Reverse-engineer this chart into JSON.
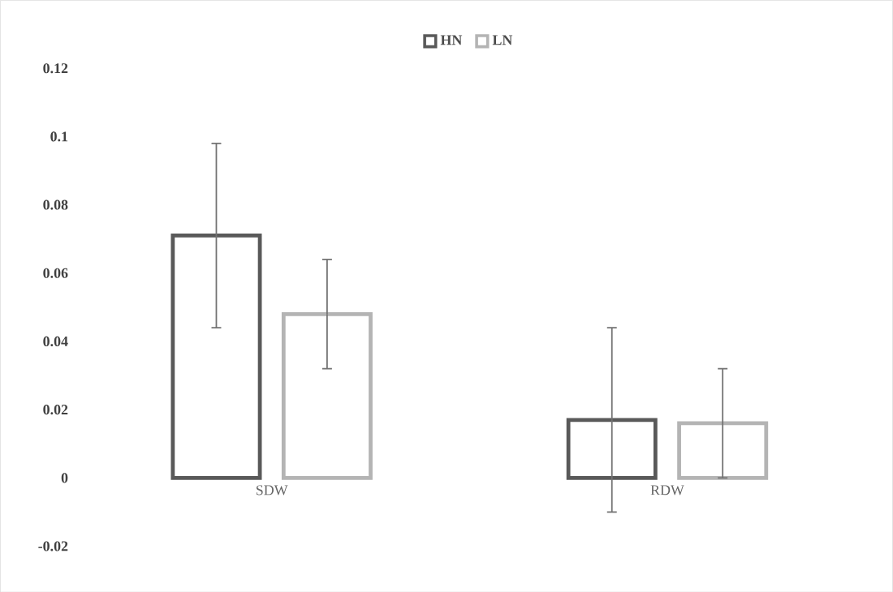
{
  "chart_data": {
    "type": "bar",
    "categories": [
      "SDW",
      "RDW"
    ],
    "series": [
      {
        "name": "HN",
        "color": "#595959",
        "values": [
          0.071,
          0.017
        ],
        "errors": [
          0.027,
          0.027
        ]
      },
      {
        "name": "LN",
        "color": "#b4b4b4",
        "values": [
          0.048,
          0.016
        ],
        "errors": [
          0.016,
          0.016
        ]
      }
    ],
    "ylim": [
      -0.02,
      0.12
    ],
    "yticks": [
      -0.02,
      0,
      0.02,
      0.04,
      0.06,
      0.08,
      {
        "value": 0.1,
        "label": "0.1"
      },
      0.12
    ],
    "legend": "top",
    "grid": false
  }
}
